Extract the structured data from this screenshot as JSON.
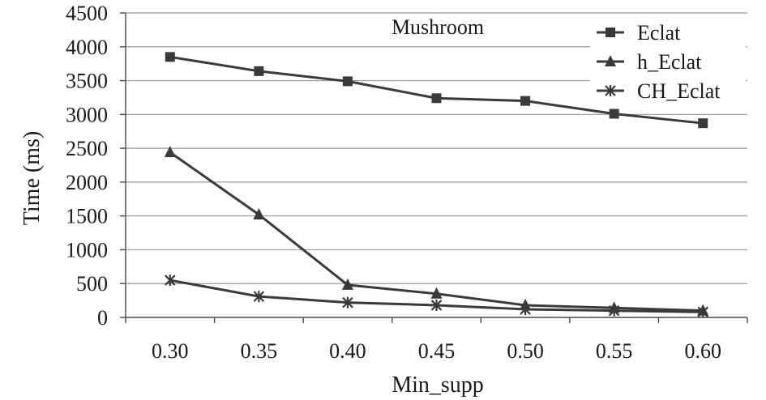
{
  "chart_data": {
    "type": "line",
    "title": "Mushroom",
    "xlabel": "Min_supp",
    "ylabel": "Time (ms)",
    "categories": [
      "0.30",
      "0.35",
      "0.40",
      "0.45",
      "0.50",
      "0.55",
      "0.60"
    ],
    "ylim": [
      0,
      4500
    ],
    "yticks": [
      0,
      500,
      1000,
      1500,
      2000,
      2500,
      3000,
      3500,
      4000,
      4500
    ],
    "grid": true,
    "legend_position": "top-right",
    "series": [
      {
        "name": "Eclat",
        "marker": "square",
        "values": [
          3850,
          3640,
          3490,
          3240,
          3200,
          3010,
          2870
        ]
      },
      {
        "name": "h_Eclat",
        "marker": "triangle",
        "values": [
          2440,
          1520,
          480,
          350,
          180,
          140,
          100
        ]
      },
      {
        "name": "CH_Eclat",
        "marker": "star",
        "values": [
          550,
          310,
          220,
          180,
          120,
          100,
          80
        ]
      }
    ],
    "colors": {
      "series": "#3a3a3a",
      "grid": "#9a9a9a",
      "axis": "#4a4a4a"
    }
  }
}
